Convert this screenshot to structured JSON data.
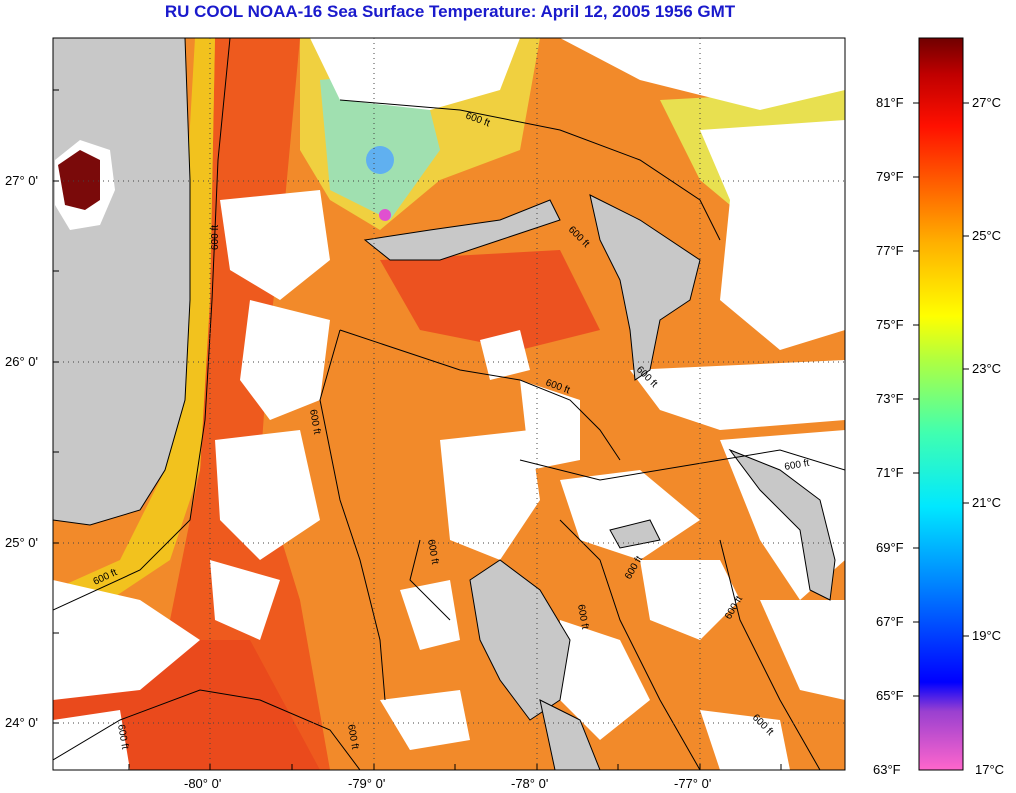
{
  "title": "RU COOL  NOAA-16  Sea Surface Temperature:  April 12, 2005 1956 GMT",
  "map": {
    "lat_ticks": [
      "27° 0'",
      "26° 0'",
      "25° 0'",
      "24° 0'"
    ],
    "lon_ticks": [
      "-80° 0'",
      "-79° 0'",
      "-78° 0'",
      "-77° 0'"
    ],
    "contour_label": "600 ft",
    "colors": {
      "land": "#c8c8c8",
      "cloud": "#ffffff",
      "warm": "#f07a1e",
      "hot": "#e8321a",
      "cool": "#f0c81e",
      "grid": "#555555"
    }
  },
  "colorbar": {
    "fahrenheit": [
      "81°F",
      "79°F",
      "77°F",
      "75°F",
      "73°F",
      "71°F",
      "69°F",
      "67°F",
      "65°F",
      "63°F"
    ],
    "celsius": [
      "27°C",
      "25°C",
      "23°C",
      "21°C",
      "19°C",
      "17°C"
    ],
    "range_c": [
      17,
      28.2
    ],
    "colors": [
      "#ff66cc",
      "#8040c8",
      "#0000ff",
      "#0080ff",
      "#00e0ff",
      "#40ffa0",
      "#a0ff40",
      "#ffff00",
      "#ffc000",
      "#ff8000",
      "#ff3000",
      "#e00000",
      "#800000"
    ]
  }
}
